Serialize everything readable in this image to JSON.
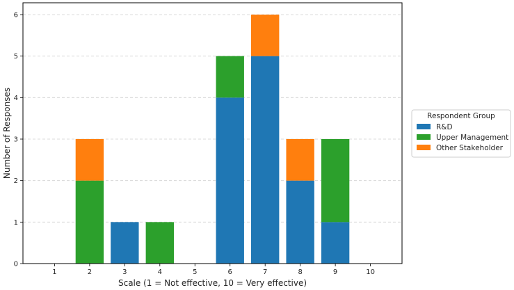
{
  "chart_data": {
    "type": "bar",
    "stacked": true,
    "title": "",
    "xlabel": "Scale (1 = Not effective, 10 = Very effective)",
    "ylabel": "Number of Responses",
    "categories": [
      "1",
      "2",
      "3",
      "4",
      "5",
      "6",
      "7",
      "8",
      "9",
      "10"
    ],
    "ylim": [
      0,
      6
    ],
    "yticks": [
      "0",
      "1",
      "2",
      "3",
      "4",
      "5",
      "6"
    ],
    "grid": "y-dashed",
    "legend": {
      "title": "Respondent Group",
      "placement": "outside-right"
    },
    "series": [
      {
        "name": "R&D",
        "color": "#1f77b4",
        "values": [
          0,
          0,
          1,
          0,
          0,
          4,
          5,
          2,
          1,
          0
        ]
      },
      {
        "name": "Upper Management",
        "color": "#2ca02c",
        "values": [
          0,
          2,
          0,
          1,
          0,
          1,
          0,
          0,
          2,
          0
        ]
      },
      {
        "name": "Other Stakeholder",
        "color": "#ff7f0e",
        "values": [
          0,
          1,
          0,
          0,
          0,
          0,
          1,
          1,
          0,
          0
        ]
      }
    ]
  }
}
